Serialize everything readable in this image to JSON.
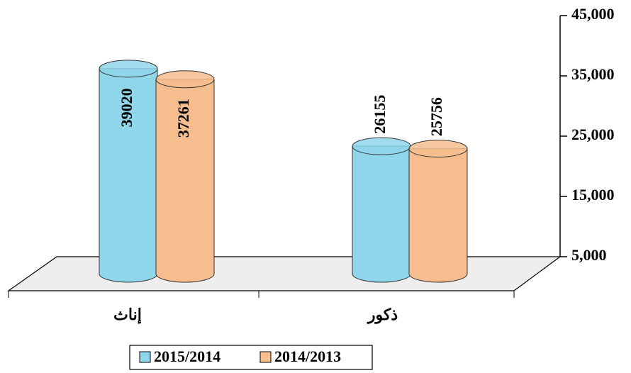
{
  "chart_data": {
    "type": "bar",
    "categories": [
      "إناث",
      "ذكور"
    ],
    "series": [
      {
        "name": "2015/2014",
        "color": "#8fd6ea",
        "values": [
          39020,
          26155
        ]
      },
      {
        "name": "2014/2013",
        "color": "#f6bd8e",
        "values": [
          37261,
          25756
        ]
      }
    ],
    "ylim": [
      5000,
      45000
    ],
    "yticks": [
      {
        "value": 5000,
        "label": "5,000"
      },
      {
        "value": 15000,
        "label": "15,000"
      },
      {
        "value": 25000,
        "label": "25,000"
      },
      {
        "value": 35000,
        "label": "35,000"
      },
      {
        "value": 45000,
        "label": "45,000"
      }
    ],
    "legend": "bottom"
  }
}
